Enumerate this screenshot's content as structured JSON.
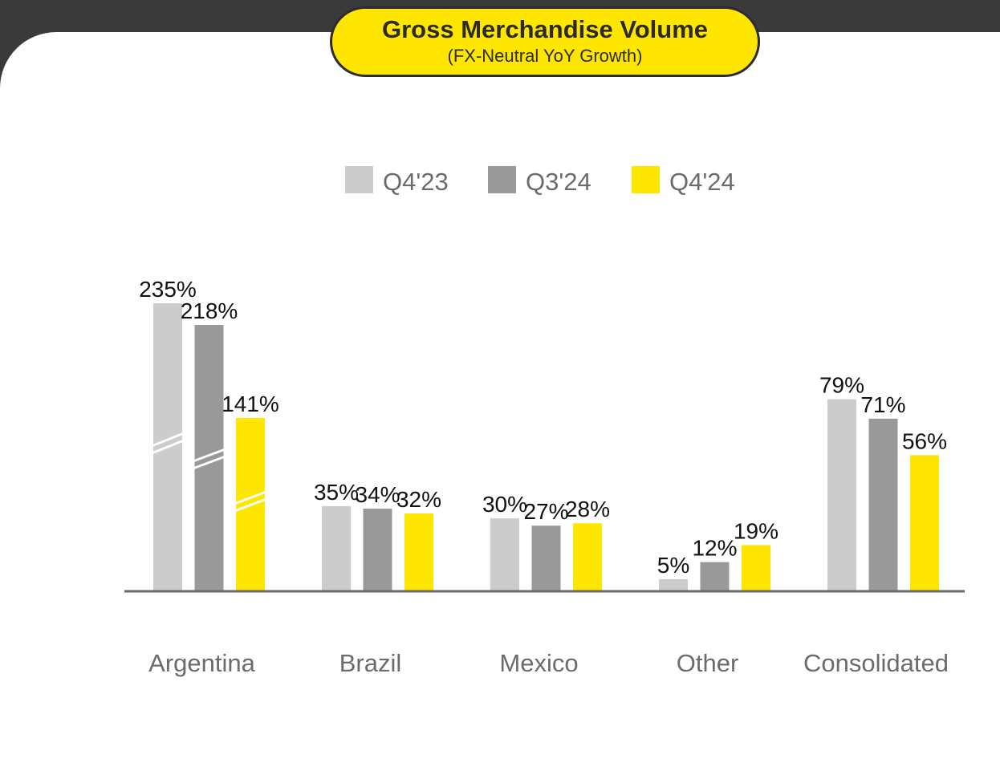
{
  "header": {
    "title": "Gross Merchandise Volume",
    "subtitle": "(FX-Neutral YoY Growth)"
  },
  "chart_data": {
    "type": "bar",
    "title": "Gross Merchandise Volume",
    "subtitle": "(FX-Neutral YoY Growth)",
    "categories": [
      "Argentina",
      "Brazil",
      "Mexico",
      "Other",
      "Consolidated"
    ],
    "series": [
      {
        "name": "Q4'23",
        "color": "#cccccc",
        "values": [
          235,
          35,
          30,
          5,
          79
        ],
        "labels": [
          "235%",
          "35%",
          "30%",
          "5%",
          "79%"
        ]
      },
      {
        "name": "Q3'24",
        "color": "#999999",
        "values": [
          218,
          34,
          27,
          12,
          71
        ],
        "labels": [
          "218%",
          "34%",
          "27%",
          "12%",
          "71%"
        ]
      },
      {
        "name": "Q4'24",
        "color": "#ffe600",
        "values": [
          141,
          32,
          28,
          19,
          56
        ],
        "labels": [
          "141%",
          "32%",
          "28%",
          "19%",
          "56%"
        ]
      }
    ],
    "broken_axis_category": "Argentina",
    "legend_position": "top-center",
    "grid": false,
    "y_axis_visible": false
  }
}
